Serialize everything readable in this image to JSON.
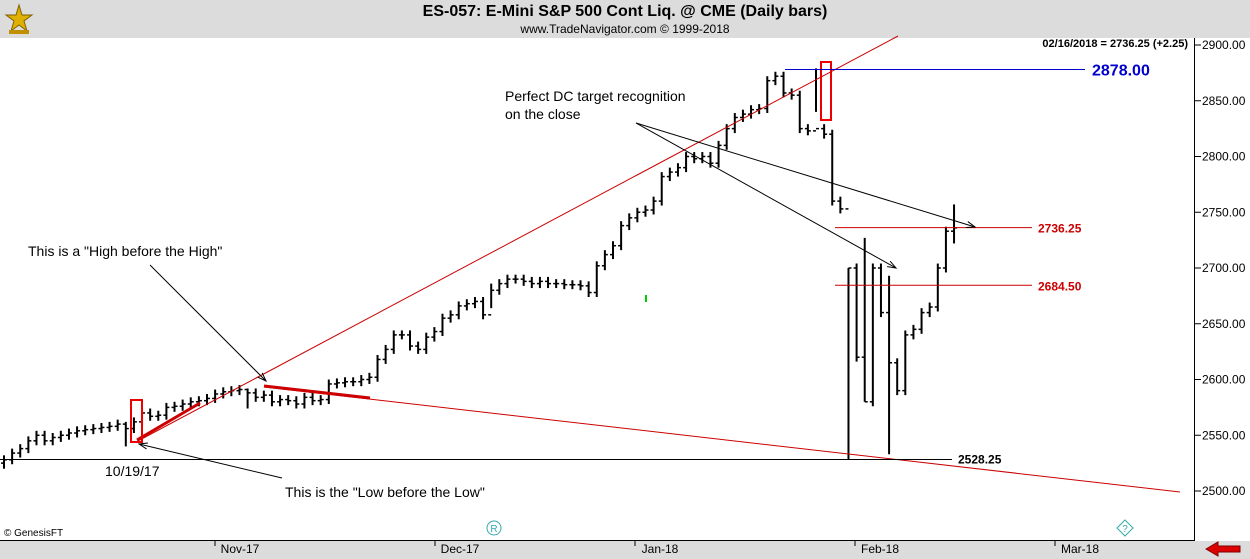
{
  "header": {
    "title": "ES-057:  E-Mini S&P 500 Cont Liq. @ CME  (Daily bars)",
    "subtitle": "www.TradeNavigator.com © 1999-2018",
    "last_info": "02/16/2018 = 2736.25 (+2.25)",
    "credit": "© GenesisFT"
  },
  "colors": {
    "bars": "#000000",
    "trend": "#cc0000",
    "target": "#0000cc",
    "levels": "#cc0000"
  },
  "icons": [
    "logo-icon",
    "r-marker-icon",
    "question-marker-icon",
    "scroll-left-arrow-icon"
  ],
  "chart_data": {
    "type": "ohlc",
    "ylim": [
      2470,
      2905
    ],
    "y_ticks": [
      2500,
      2550,
      2600,
      2650,
      2700,
      2750,
      2800,
      2850,
      2900
    ],
    "y_tick_labels": [
      "2500.00",
      "2550.00",
      "2600.00",
      "2650.00",
      "2700.00",
      "2750.00",
      "2800.00",
      "2850.00",
      "2900.00"
    ],
    "x_labels": [
      {
        "label": "Nov-17",
        "date": "2017-11-01"
      },
      {
        "label": "Dec-17",
        "date": "2017-12-01"
      },
      {
        "label": "Jan-18",
        "date": "2018-01-01"
      },
      {
        "label": "Feb-18",
        "date": "2018-02-01"
      },
      {
        "label": "Mar-18",
        "date": "2018-03-01"
      }
    ],
    "series_close": [
      2528,
      2534,
      2538,
      2545,
      2550,
      2545,
      2548,
      2550,
      2552,
      2554,
      2555,
      2556,
      2557,
      2558,
      2560,
      2556,
      2562,
      2570,
      2567,
      2568,
      2575,
      2576,
      2578,
      2580,
      2581,
      2583,
      2587,
      2589,
      2590,
      2591,
      2588,
      2584,
      2586,
      2580,
      2582,
      2581,
      2578,
      2584,
      2581,
      2582,
      2596,
      2597,
      2598,
      2598,
      2600,
      2602,
      2618,
      2627,
      2640,
      2640,
      2630,
      2627,
      2638,
      2643,
      2655,
      2658,
      2666,
      2668,
      2670,
      2658,
      2680,
      2686,
      2690,
      2690,
      2688,
      2686,
      2688,
      2686,
      2686,
      2685,
      2685,
      2684,
      2678,
      2702,
      2712,
      2720,
      2738,
      2745,
      2750,
      2752,
      2760,
      2782,
      2786,
      2790,
      2800,
      2798,
      2800,
      2794,
      2810,
      2825,
      2835,
      2838,
      2842,
      2843,
      2868,
      2872,
      2857,
      2855,
      2825,
      2823,
      2825,
      2820,
      2760,
      2753,
      2700,
      2620,
      2580,
      2700,
      2660,
      2615,
      2590,
      2640,
      2645,
      2660,
      2665,
      2700,
      2733,
      2736
    ],
    "bars_ohlc": [
      {
        "i": 0,
        "h": 2532,
        "l": 2520
      },
      {
        "i": 15,
        "h": 2562,
        "l": 2540
      },
      {
        "i": 30,
        "h": 2592,
        "l": 2574
      },
      {
        "i": 60,
        "h": 2686,
        "l": 2664
      },
      {
        "i": 100,
        "h": 2879,
        "l": 2840
      },
      {
        "i": 104,
        "h": 2700,
        "l": 2528
      },
      {
        "i": 106,
        "h": 2727,
        "l": 2580
      },
      {
        "i": 109,
        "h": 2693,
        "l": 2533
      },
      {
        "i": 117,
        "h": 2757,
        "l": 2722
      }
    ],
    "levels": [
      {
        "label": "2878.00",
        "value": 2878,
        "color": "#0000cc"
      },
      {
        "label": "2736.25",
        "value": 2736.25,
        "color": "#cc0000"
      },
      {
        "label": "2684.50",
        "value": 2684.5,
        "color": "#cc0000"
      },
      {
        "label": "2528.25",
        "value": 2528.25,
        "color": "#000000"
      }
    ],
    "annotations": [
      {
        "text": "This is a \"High before the High\""
      },
      {
        "text": "This is the \"Low before the Low\""
      },
      {
        "text": "Perfect DC target recognition"
      },
      {
        "text": "on the close"
      },
      {
        "text": "10/19/17"
      }
    ]
  }
}
